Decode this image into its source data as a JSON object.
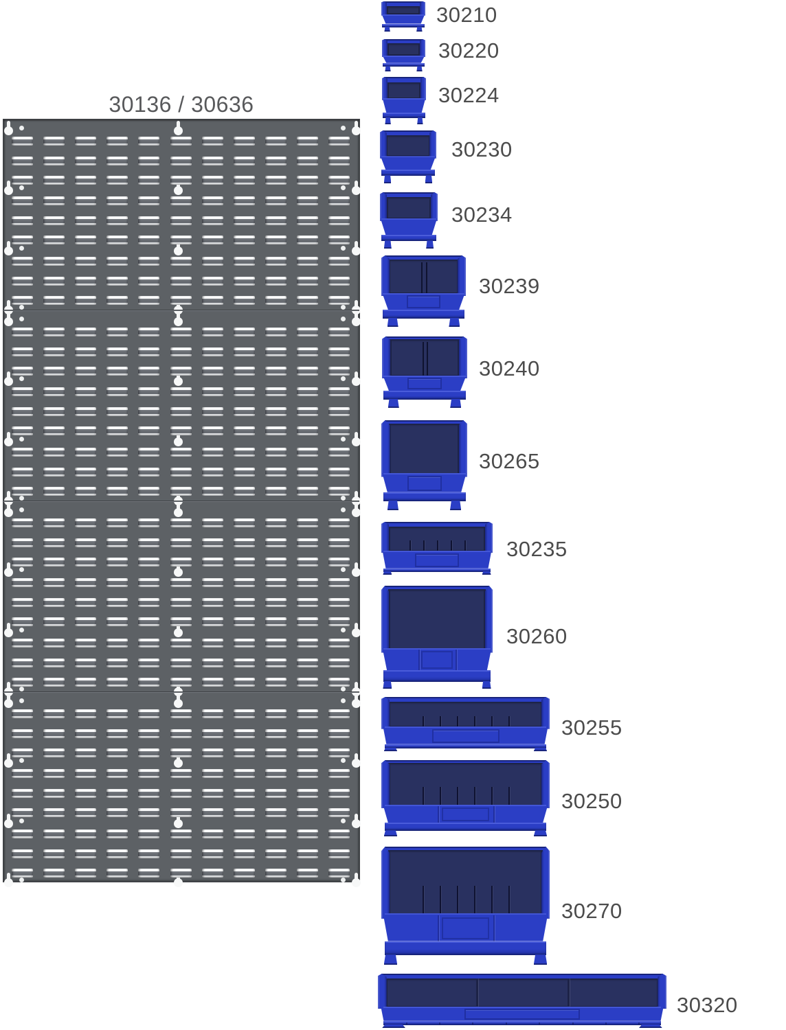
{
  "panel": {
    "label": "30136 / 30636",
    "sections": 4,
    "louver_rows_per_section": 9,
    "louver_columns": 11
  },
  "bins": [
    {
      "code": "30210"
    },
    {
      "code": "30220"
    },
    {
      "code": "30224"
    },
    {
      "code": "30230"
    },
    {
      "code": "30234"
    },
    {
      "code": "30239"
    },
    {
      "code": "30240"
    },
    {
      "code": "30265"
    },
    {
      "code": "30235"
    },
    {
      "code": "30260"
    },
    {
      "code": "30255"
    },
    {
      "code": "30250"
    },
    {
      "code": "30270"
    },
    {
      "code": "30320"
    }
  ],
  "colors": {
    "background": "#ffffff",
    "panel_gray": "#5d6165",
    "slot_white": "#fafbfb",
    "bin_blue": "#2b3ec5",
    "bin_blue_light": "#4a5cdb",
    "bin_blue_dark": "#1e2f9e",
    "bin_navy": "#293160",
    "bin_navy_dark": "#1d2347",
    "label_text": "#4c4c4c"
  }
}
